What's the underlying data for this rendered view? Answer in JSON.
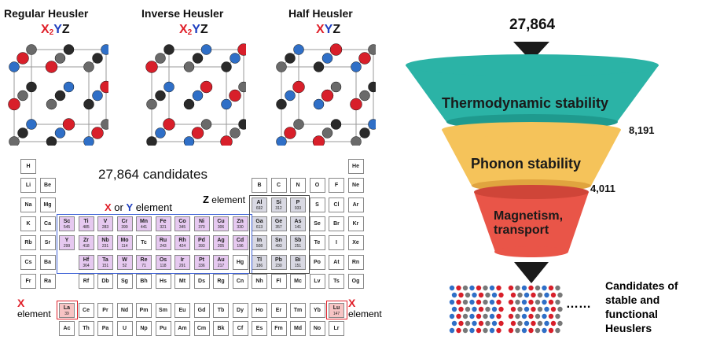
{
  "structures": [
    {
      "title": "Regular Heusler",
      "formula": [
        {
          "t": "X",
          "c": "x"
        },
        {
          "t": "2",
          "c": "x",
          "sub": true
        },
        {
          "t": "Y",
          "c": "y"
        },
        {
          "t": "Z",
          "c": "z"
        }
      ]
    },
    {
      "title": "Inverse Heusler",
      "formula": [
        {
          "t": "X",
          "c": "x"
        },
        {
          "t": "2",
          "c": "x",
          "sub": true
        },
        {
          "t": "Y",
          "c": "y"
        },
        {
          "t": "Z",
          "c": "z"
        }
      ]
    },
    {
      "title": "Half Heusler",
      "formula": [
        {
          "t": "X",
          "c": "x"
        },
        {
          "t": "Y",
          "c": "y"
        },
        {
          "t": "Z",
          "c": "z"
        }
      ]
    }
  ],
  "periodic": {
    "title": "27,864 candidates",
    "xy_label": {
      "x": "X",
      "or": " or ",
      "y": "Y",
      "rest": " element"
    },
    "z_label": {
      "z": "Z",
      "rest": " element"
    },
    "x_label_left": {
      "x": "X",
      "rest": "element"
    },
    "x_label_right": {
      "x": "X",
      "rest": "element"
    },
    "elements": [
      {
        "s": "H",
        "r": 0,
        "c": 0
      },
      {
        "s": "He",
        "r": 0,
        "c": 17
      },
      {
        "s": "Li",
        "r": 1,
        "c": 0
      },
      {
        "s": "Be",
        "r": 1,
        "c": 1
      },
      {
        "s": "B",
        "r": 1,
        "c": 12
      },
      {
        "s": "C",
        "r": 1,
        "c": 13
      },
      {
        "s": "N",
        "r": 1,
        "c": 14
      },
      {
        "s": "O",
        "r": 1,
        "c": 15
      },
      {
        "s": "F",
        "r": 1,
        "c": 16
      },
      {
        "s": "Ne",
        "r": 1,
        "c": 17
      },
      {
        "s": "Na",
        "r": 2,
        "c": 0
      },
      {
        "s": "Mg",
        "r": 2,
        "c": 1
      },
      {
        "s": "Al",
        "r": 2,
        "c": 12,
        "n": "692",
        "k": "z"
      },
      {
        "s": "Si",
        "r": 2,
        "c": 13,
        "n": "312",
        "k": "z"
      },
      {
        "s": "P",
        "r": 2,
        "c": 14,
        "n": "933",
        "k": "z"
      },
      {
        "s": "S",
        "r": 2,
        "c": 15
      },
      {
        "s": "Cl",
        "r": 2,
        "c": 16
      },
      {
        "s": "Ar",
        "r": 2,
        "c": 17
      },
      {
        "s": "K",
        "r": 3,
        "c": 0
      },
      {
        "s": "Ca",
        "r": 3,
        "c": 1
      },
      {
        "s": "Sc",
        "r": 3,
        "c": 2,
        "n": "545",
        "k": "xy"
      },
      {
        "s": "Ti",
        "r": 3,
        "c": 3,
        "n": "485",
        "k": "xy"
      },
      {
        "s": "V",
        "r": 3,
        "c": 4,
        "n": "283",
        "k": "xy"
      },
      {
        "s": "Cr",
        "r": 3,
        "c": 5,
        "n": "399",
        "k": "xy"
      },
      {
        "s": "Mn",
        "r": 3,
        "c": 6,
        "n": "441",
        "k": "xy"
      },
      {
        "s": "Fe",
        "r": 3,
        "c": 7,
        "n": "321",
        "k": "xy"
      },
      {
        "s": "Co",
        "r": 3,
        "c": 8,
        "n": "345",
        "k": "xy"
      },
      {
        "s": "Ni",
        "r": 3,
        "c": 9,
        "n": "370",
        "k": "xy"
      },
      {
        "s": "Cu",
        "r": 3,
        "c": 10,
        "n": "306",
        "k": "xy"
      },
      {
        "s": "Zn",
        "r": 3,
        "c": 11,
        "n": "330",
        "k": "xy"
      },
      {
        "s": "Ga",
        "r": 3,
        "c": 12,
        "n": "613",
        "k": "z"
      },
      {
        "s": "Ge",
        "r": 3,
        "c": 13,
        "n": "357",
        "k": "z"
      },
      {
        "s": "As",
        "r": 3,
        "c": 14,
        "n": "141",
        "k": "z"
      },
      {
        "s": "Se",
        "r": 3,
        "c": 15
      },
      {
        "s": "Br",
        "r": 3,
        "c": 16
      },
      {
        "s": "Kr",
        "r": 3,
        "c": 17
      },
      {
        "s": "Rb",
        "r": 4,
        "c": 0
      },
      {
        "s": "Sr",
        "r": 4,
        "c": 1
      },
      {
        "s": "Y",
        "r": 4,
        "c": 2,
        "n": "299",
        "k": "xy"
      },
      {
        "s": "Zr",
        "r": 4,
        "c": 3,
        "n": "418",
        "k": "xy"
      },
      {
        "s": "Nb",
        "r": 4,
        "c": 4,
        "n": "231",
        "k": "xy"
      },
      {
        "s": "Mo",
        "r": 4,
        "c": 5,
        "n": "114",
        "k": "xy"
      },
      {
        "s": "Tc",
        "r": 4,
        "c": 6
      },
      {
        "s": "Ru",
        "r": 4,
        "c": 7,
        "n": "243",
        "k": "xy"
      },
      {
        "s": "Rh",
        "r": 4,
        "c": 8,
        "n": "424",
        "k": "xy"
      },
      {
        "s": "Pd",
        "r": 4,
        "c": 9,
        "n": "393",
        "k": "xy"
      },
      {
        "s": "Ag",
        "r": 4,
        "c": 10,
        "n": "205",
        "k": "xy"
      },
      {
        "s": "Cd",
        "r": 4,
        "c": 11,
        "n": "196",
        "k": "xy"
      },
      {
        "s": "In",
        "r": 4,
        "c": 12,
        "n": "508",
        "k": "z"
      },
      {
        "s": "Sn",
        "r": 4,
        "c": 13,
        "n": "493",
        "k": "z"
      },
      {
        "s": "Sb",
        "r": 4,
        "c": 14,
        "n": "251",
        "k": "z"
      },
      {
        "s": "Te",
        "r": 4,
        "c": 15
      },
      {
        "s": "I",
        "r": 4,
        "c": 16
      },
      {
        "s": "Xe",
        "r": 4,
        "c": 17
      },
      {
        "s": "Cs",
        "r": 5,
        "c": 0
      },
      {
        "s": "Ba",
        "r": 5,
        "c": 1
      },
      {
        "s": "Hf",
        "r": 5,
        "c": 3,
        "n": "364",
        "k": "xy"
      },
      {
        "s": "Ta",
        "r": 5,
        "c": 4,
        "n": "151",
        "k": "xy"
      },
      {
        "s": "W",
        "r": 5,
        "c": 5,
        "n": "52",
        "k": "xy"
      },
      {
        "s": "Re",
        "r": 5,
        "c": 6,
        "n": "71",
        "k": "xy"
      },
      {
        "s": "Os",
        "r": 5,
        "c": 7,
        "n": "118",
        "k": "xy"
      },
      {
        "s": "Ir",
        "r": 5,
        "c": 8,
        "n": "291",
        "k": "xy"
      },
      {
        "s": "Pt",
        "r": 5,
        "c": 9,
        "n": "336",
        "k": "xy"
      },
      {
        "s": "Au",
        "r": 5,
        "c": 10,
        "n": "217",
        "k": "xy"
      },
      {
        "s": "Hg",
        "r": 5,
        "c": 11
      },
      {
        "s": "Tl",
        "r": 5,
        "c": 12,
        "n": "186",
        "k": "z"
      },
      {
        "s": "Pb",
        "r": 5,
        "c": 13,
        "n": "230",
        "k": "z"
      },
      {
        "s": "Bi",
        "r": 5,
        "c": 14,
        "n": "151",
        "k": "z"
      },
      {
        "s": "Po",
        "r": 5,
        "c": 15
      },
      {
        "s": "At",
        "r": 5,
        "c": 16
      },
      {
        "s": "Rn",
        "r": 5,
        "c": 17
      },
      {
        "s": "Fr",
        "r": 6,
        "c": 0
      },
      {
        "s": "Ra",
        "r": 6,
        "c": 1
      },
      {
        "s": "Rf",
        "r": 6,
        "c": 3
      },
      {
        "s": "Db",
        "r": 6,
        "c": 4
      },
      {
        "s": "Sg",
        "r": 6,
        "c": 5
      },
      {
        "s": "Bh",
        "r": 6,
        "c": 6
      },
      {
        "s": "Hs",
        "r": 6,
        "c": 7
      },
      {
        "s": "Mt",
        "r": 6,
        "c": 8
      },
      {
        "s": "Ds",
        "r": 6,
        "c": 9
      },
      {
        "s": "Rg",
        "r": 6,
        "c": 10
      },
      {
        "s": "Cn",
        "r": 6,
        "c": 11
      },
      {
        "s": "Nh",
        "r": 6,
        "c": 12
      },
      {
        "s": "Fl",
        "r": 6,
        "c": 13
      },
      {
        "s": "Mc",
        "r": 6,
        "c": 14
      },
      {
        "s": "Lv",
        "r": 6,
        "c": 15
      },
      {
        "s": "Ts",
        "r": 6,
        "c": 16
      },
      {
        "s": "Og",
        "r": 6,
        "c": 17
      }
    ],
    "lanthanides": [
      {
        "s": "La",
        "n": "39",
        "k": "xel"
      },
      {
        "s": "Ce"
      },
      {
        "s": "Pr"
      },
      {
        "s": "Nd"
      },
      {
        "s": "Pm"
      },
      {
        "s": "Sm"
      },
      {
        "s": "Eu"
      },
      {
        "s": "Gd"
      },
      {
        "s": "Tb"
      },
      {
        "s": "Dy"
      },
      {
        "s": "Ho"
      },
      {
        "s": "Er"
      },
      {
        "s": "Tm"
      },
      {
        "s": "Yb"
      },
      {
        "s": "Lu",
        "n": "147",
        "k": "xel"
      }
    ],
    "actinides": [
      {
        "s": "Ac"
      },
      {
        "s": "Th"
      },
      {
        "s": "Pa"
      },
      {
        "s": "U"
      },
      {
        "s": "Np"
      },
      {
        "s": "Pu"
      },
      {
        "s": "Am"
      },
      {
        "s": "Cm"
      },
      {
        "s": "Bk"
      },
      {
        "s": "Cf"
      },
      {
        "s": "Es"
      },
      {
        "s": "Fm"
      },
      {
        "s": "Md"
      },
      {
        "s": "No"
      },
      {
        "s": "Lr"
      }
    ]
  },
  "funnel": {
    "top_count": "27,864",
    "stages": [
      {
        "label": "Thermodynamic stability",
        "count": "8,191",
        "color": "#2bb3a6"
      },
      {
        "label": "Phonon stability",
        "count": "4,011",
        "color": "#f5c35a"
      },
      {
        "label_line1": "Magnetism,",
        "label_line2": "transport",
        "color": "#e95548"
      }
    ],
    "dots": "……",
    "result": [
      "Candidates of",
      "stable and",
      "functional",
      "Heuslers"
    ]
  },
  "colors": {
    "x": "#e0202a",
    "y": "#1f3fbf",
    "atom_gray": "#555555",
    "atom_dark": "#2a2a2a"
  }
}
